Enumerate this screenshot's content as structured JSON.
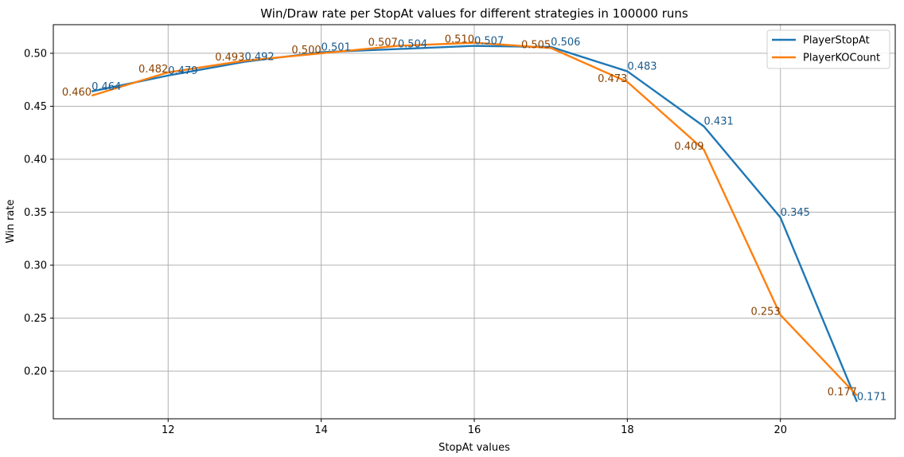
{
  "chart_data": {
    "type": "line",
    "title": "Win/Draw rate per StopAt values for different strategies in 100000 runs",
    "xlabel": "StopAt values",
    "ylabel": "Win rate",
    "xlim": [
      10.5,
      21.5
    ],
    "ylim": [
      0.155,
      0.527
    ],
    "x": [
      11,
      12,
      13,
      14,
      15,
      16,
      17,
      18,
      19,
      20,
      21
    ],
    "xticks": [
      "12",
      "14",
      "16",
      "18",
      "20"
    ],
    "yticks": [
      "0.20",
      "0.25",
      "0.30",
      "0.35",
      "0.40",
      "0.45",
      "0.50"
    ],
    "grid": true,
    "legend_position": "top-right",
    "series": [
      {
        "name": "PlayerStopAt",
        "color": "#1f77b4",
        "label_color": "#1a5a8c",
        "values": [
          0.464,
          0.479,
          0.492,
          0.501,
          0.504,
          0.507,
          0.506,
          0.483,
          0.431,
          0.345,
          0.171
        ],
        "labels": [
          "0.464",
          "0.479",
          "0.492",
          "0.501",
          "0.504",
          "0.507",
          "0.506",
          "0.483",
          "0.431",
          "0.345",
          "0.171"
        ]
      },
      {
        "name": "PlayerKOCount",
        "color": "#ff7f0e",
        "label_color": "#8a4200",
        "values": [
          0.46,
          0.482,
          0.493,
          0.5,
          0.507,
          0.51,
          0.505,
          0.473,
          0.409,
          0.253,
          0.177
        ],
        "labels": [
          "0.460",
          "0.482",
          "0.493",
          "0.500",
          "0.507",
          "0.510",
          "0.505",
          "0.473",
          "0.409",
          "0.253",
          "0.177"
        ]
      }
    ]
  }
}
